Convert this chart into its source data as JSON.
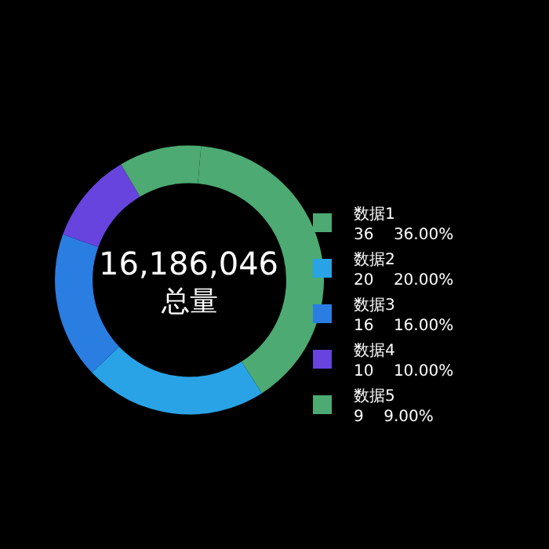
{
  "chart_data": {
    "type": "donut",
    "categories": [
      "数据1",
      "数据2",
      "数据3",
      "数据4",
      "数据5"
    ],
    "values": [
      36,
      20,
      16,
      10,
      9
    ],
    "value_labels": [
      "36    36.00%",
      "20    20.00%",
      "16    16.00%",
      "10    10.00%",
      "9    9.00%"
    ],
    "colors": [
      "#4caa72",
      "#29a3e6",
      "#2a7de1",
      "#6644dd",
      "#4caa72"
    ],
    "annotations": [
      "16,186,046",
      "总量"
    ],
    "legend": "right"
  }
}
